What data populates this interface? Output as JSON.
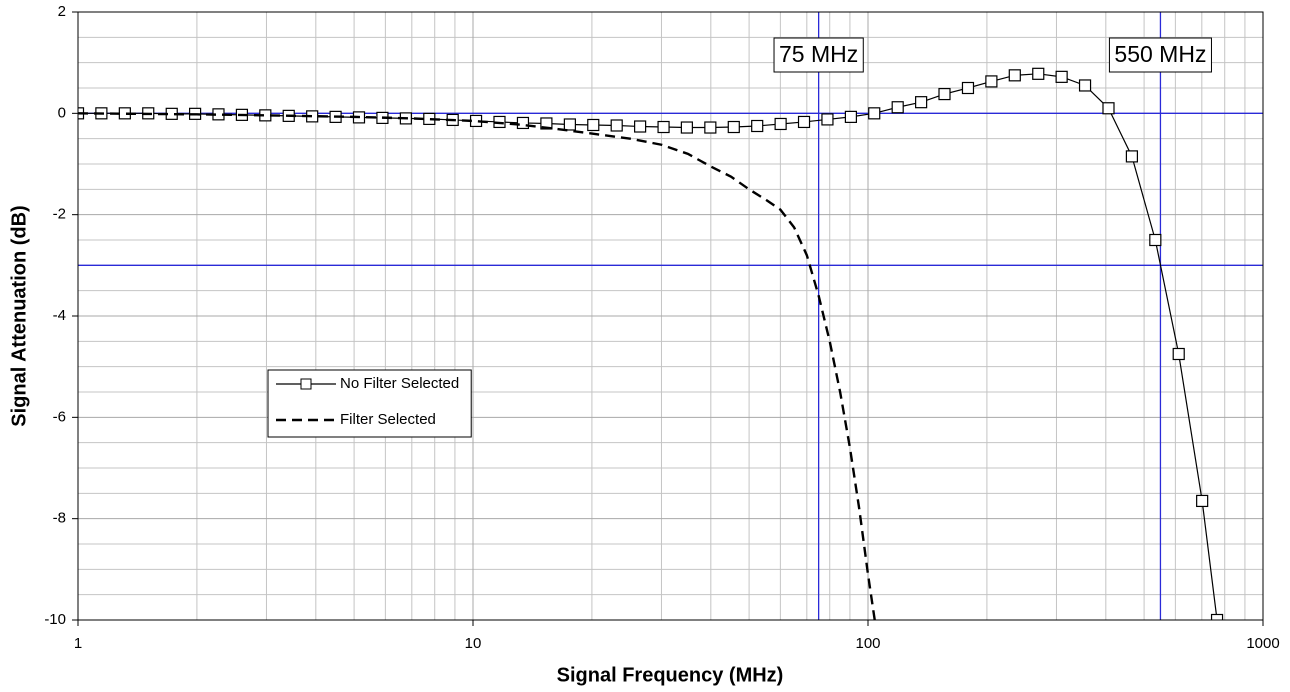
{
  "chart_data": {
    "type": "line",
    "xlabel": "Signal Frequency (MHz)",
    "ylabel": "Signal Attenuation (dB)",
    "xscale": "log",
    "xlim": [
      1,
      1000
    ],
    "xticks": [
      1,
      10,
      100,
      1000
    ],
    "ylim": [
      -10,
      2
    ],
    "yticks": [
      2,
      0,
      -2,
      -4,
      -6,
      -8,
      -10
    ],
    "grid": true,
    "minor_grid": true,
    "legend": "center left",
    "reference_lines": {
      "x": [
        75,
        550
      ],
      "y": [
        0,
        -3
      ],
      "color": "#2a2ad8"
    },
    "annotations": [
      {
        "text": "75 MHz",
        "x": 75
      },
      {
        "text": "550 MHz",
        "x": 550
      }
    ],
    "series": [
      {
        "name": "No Filter Selected",
        "color": "#000000",
        "line_style": "solid",
        "marker": "square",
        "x": [
          1,
          1.146,
          1.314,
          1.506,
          1.727,
          1.979,
          2.268,
          2.6,
          2.98,
          3.416,
          3.916,
          4.489,
          5.145,
          5.898,
          6.762,
          7.751,
          8.884,
          10.18,
          11.67,
          13.38,
          15.34,
          17.59,
          20.16,
          23.11,
          26.49,
          30.37,
          34.79,
          39.89,
          45.73,
          52.42,
          60.09,
          68.87,
          78.95,
          90.51,
          103.7,
          118.9,
          136.3,
          156.2,
          179.1,
          205.3,
          235.3,
          269.8,
          309.2,
          354.4,
          406.3,
          465.7,
          533.8,
          611.8,
          701.4,
          765
        ],
        "values": [
          0,
          0,
          0,
          0,
          -0.01,
          -0.01,
          -0.02,
          -0.03,
          -0.04,
          -0.05,
          -0.06,
          -0.07,
          -0.08,
          -0.09,
          -0.1,
          -0.11,
          -0.13,
          -0.15,
          -0.17,
          -0.19,
          -0.2,
          -0.22,
          -0.23,
          -0.24,
          -0.26,
          -0.27,
          -0.28,
          -0.28,
          -0.27,
          -0.25,
          -0.21,
          -0.17,
          -0.12,
          -0.07,
          0,
          0.12,
          0.22,
          0.38,
          0.5,
          0.63,
          0.75,
          0.78,
          0.72,
          0.55,
          0.1,
          -0.85,
          -2.5,
          -4.75,
          -7.65,
          -10
        ]
      },
      {
        "name": "Filter Selected",
        "color": "#000000",
        "line_style": "dashed",
        "marker": "none",
        "x": [
          1,
          2,
          3,
          5,
          7,
          10,
          13,
          16,
          20,
          25,
          30,
          35,
          40,
          45,
          50,
          55,
          60,
          65,
          70,
          75,
          80,
          85,
          90,
          95,
          100,
          104
        ],
        "values": [
          0,
          -0.02,
          -0.04,
          -0.07,
          -0.1,
          -0.15,
          -0.22,
          -0.3,
          -0.4,
          -0.5,
          -0.62,
          -0.8,
          -1.05,
          -1.25,
          -1.5,
          -1.7,
          -1.9,
          -2.25,
          -2.8,
          -3.6,
          -4.5,
          -5.5,
          -6.6,
          -7.8,
          -9.1,
          -10
        ]
      }
    ]
  }
}
